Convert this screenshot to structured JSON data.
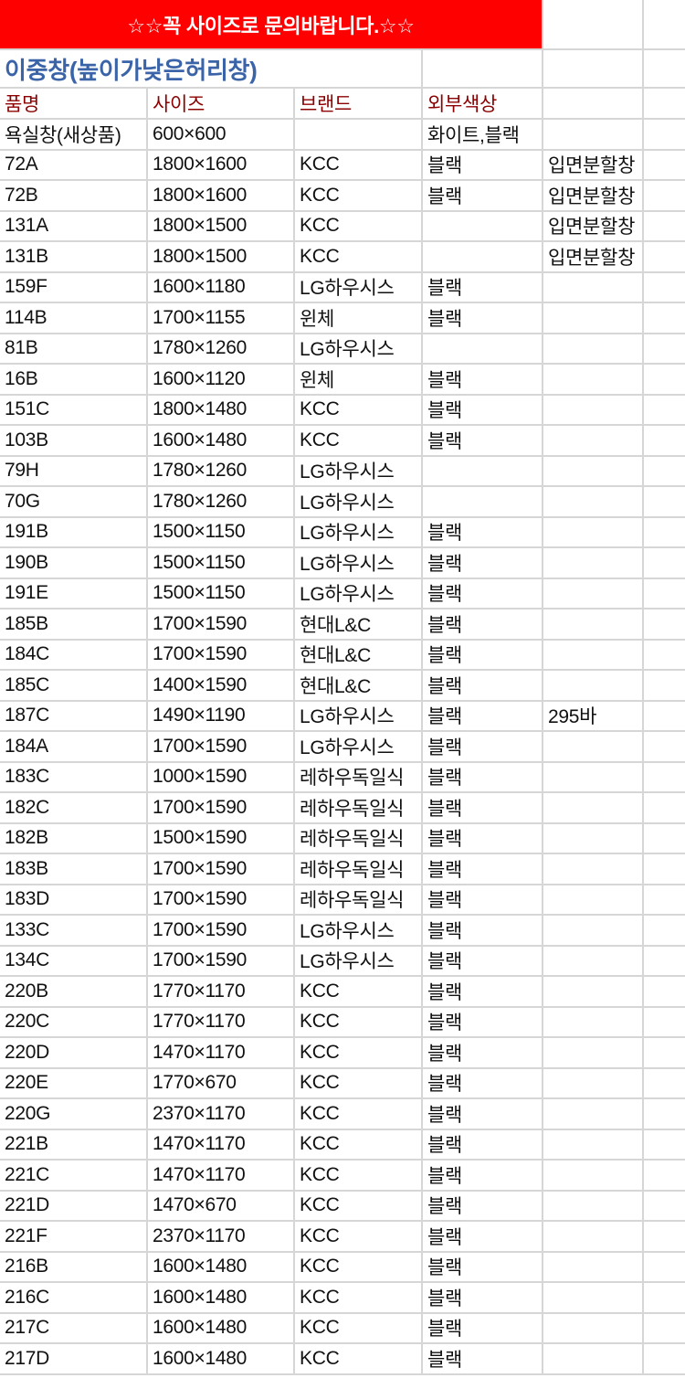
{
  "banner": "☆☆꼭 사이즈로 문의바랍니다.☆☆",
  "title": "이중창(높이가낮은허리창)",
  "headers": [
    "품명",
    "사이즈",
    "브랜드",
    "외부색상"
  ],
  "colors": {
    "banner_bg": "#fe0000",
    "title": "#3b64a8",
    "header": "#8b0000",
    "grid": "#d6d6d6"
  },
  "rows": [
    [
      "욕실창(새상품)",
      "600×600",
      "",
      "화이트,블랙",
      ""
    ],
    [
      "72A",
      "1800×1600",
      "KCC",
      "블랙",
      "입면분할창"
    ],
    [
      "72B",
      "1800×1600",
      "KCC",
      "블랙",
      "입면분할창"
    ],
    [
      "131A",
      "1800×1500",
      "KCC",
      "",
      "입면분할창"
    ],
    [
      "131B",
      "1800×1500",
      "KCC",
      "",
      "입면분할창"
    ],
    [
      "159F",
      "1600×1180",
      "LG하우시스",
      "블랙",
      ""
    ],
    [
      "114B",
      "1700×1155",
      "윈체",
      "블랙",
      ""
    ],
    [
      "81B",
      "1780×1260",
      "LG하우시스",
      "",
      ""
    ],
    [
      "16B",
      "1600×1120",
      "윈체",
      "블랙",
      ""
    ],
    [
      "151C",
      "1800×1480",
      "KCC",
      "블랙",
      ""
    ],
    [
      "103B",
      "1600×1480",
      "KCC",
      "블랙",
      ""
    ],
    [
      "79H",
      "1780×1260",
      "LG하우시스",
      "",
      ""
    ],
    [
      "70G",
      "1780×1260",
      "LG하우시스",
      "",
      ""
    ],
    [
      "191B",
      "1500×1150",
      "LG하우시스",
      "블랙",
      ""
    ],
    [
      "190B",
      "1500×1150",
      "LG하우시스",
      "블랙",
      ""
    ],
    [
      "191E",
      "1500×1150",
      "LG하우시스",
      "블랙",
      ""
    ],
    [
      "185B",
      "1700×1590",
      "현대L&C",
      "블랙",
      ""
    ],
    [
      "184C",
      "1700×1590",
      "현대L&C",
      "블랙",
      ""
    ],
    [
      "185C",
      "1400×1590",
      "현대L&C",
      "블랙",
      ""
    ],
    [
      "187C",
      "1490×1190",
      "LG하우시스",
      "블랙",
      "295바"
    ],
    [
      "184A",
      "1700×1590",
      "LG하우시스",
      "블랙",
      ""
    ],
    [
      "183C",
      "1000×1590",
      "레하우독일식",
      "블랙",
      ""
    ],
    [
      "182C",
      "1700×1590",
      "레하우독일식",
      "블랙",
      ""
    ],
    [
      "182B",
      "1500×1590",
      "레하우독일식",
      "블랙",
      ""
    ],
    [
      "183B",
      "1700×1590",
      "레하우독일식",
      "블랙",
      ""
    ],
    [
      "183D",
      "1700×1590",
      "레하우독일식",
      "블랙",
      ""
    ],
    [
      "133C",
      "1700×1590",
      "LG하우시스",
      "블랙",
      ""
    ],
    [
      "134C",
      "1700×1590",
      "LG하우시스",
      "블랙",
      ""
    ],
    [
      "220B",
      "1770×1170",
      "KCC",
      "블랙",
      ""
    ],
    [
      "220C",
      "1770×1170",
      "KCC",
      "블랙",
      ""
    ],
    [
      "220D",
      "1470×1170",
      "KCC",
      "블랙",
      ""
    ],
    [
      "220E",
      "1770×670",
      "KCC",
      "블랙",
      ""
    ],
    [
      "220G",
      "2370×1170",
      "KCC",
      "블랙",
      ""
    ],
    [
      "221B",
      "1470×1170",
      "KCC",
      "블랙",
      ""
    ],
    [
      "221C",
      "1470×1170",
      "KCC",
      "블랙",
      ""
    ],
    [
      "221D",
      "1470×670",
      "KCC",
      "블랙",
      ""
    ],
    [
      "221F",
      "2370×1170",
      "KCC",
      "블랙",
      ""
    ],
    [
      "216B",
      "1600×1480",
      "KCC",
      "블랙",
      ""
    ],
    [
      "216C",
      "1600×1480",
      "KCC",
      "블랙",
      ""
    ],
    [
      "217C",
      "1600×1480",
      "KCC",
      "블랙",
      ""
    ],
    [
      "217D",
      "1600×1480",
      "KCC",
      "블랙",
      ""
    ]
  ]
}
